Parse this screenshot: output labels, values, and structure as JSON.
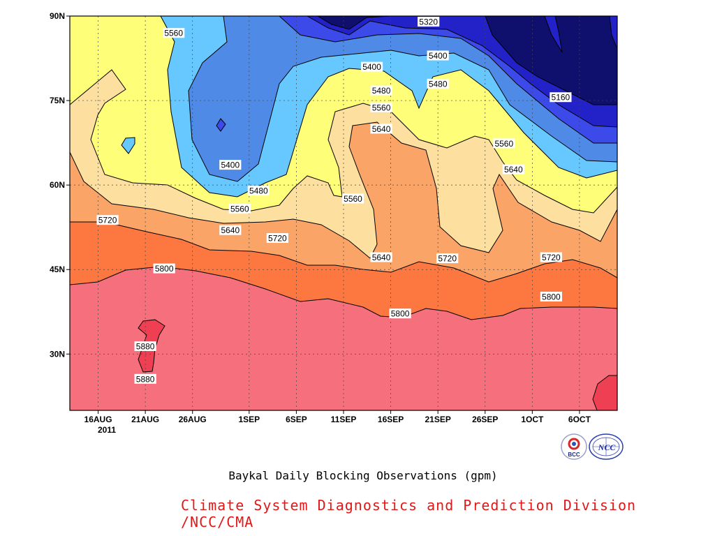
{
  "title": "Baykal Daily Blocking Observations (gpm)",
  "credit": "Climate System Diagnostics and Prediction Division /NCC/CMA",
  "logos": [
    "BCC",
    "NCC"
  ],
  "chart_data": {
    "type": "contour",
    "x_tick_labels": [
      "16AUG",
      "21AUG",
      "26AUG",
      "1SEP",
      "6SEP",
      "11SEP",
      "16SEP",
      "21SEP",
      "26SEP",
      "1OCT",
      "6OCT"
    ],
    "x_year_label": "2011",
    "x_ticks": [
      "2011-08-16",
      "2011-08-21",
      "2011-08-26",
      "2011-09-01",
      "2011-09-06",
      "2011-09-11",
      "2011-09-16",
      "2011-09-21",
      "2011-09-26",
      "2011-10-01",
      "2011-10-06"
    ],
    "xlim": [
      "2011-08-13",
      "2011-10-10"
    ],
    "y_tick_labels": [
      "30N",
      "45N",
      "60N",
      "75N",
      "90N"
    ],
    "y_ticks": [
      30,
      45,
      60,
      75,
      90
    ],
    "ylim": [
      20,
      90
    ],
    "grid": true,
    "contour_levels": [
      5160,
      5240,
      5320,
      5400,
      5480,
      5560,
      5640,
      5720,
      5800,
      5880
    ],
    "fill_colors": {
      "lt5160": "#0f0f6e",
      "5160": "#2222c8",
      "5240": "#3b4ae8",
      "5320": "#4f8be6",
      "5400": "#5ea9ee",
      "5480": "#66c8ff",
      "5560": "#fefe78",
      "5640": "#fddf9f",
      "5720": "#fba468",
      "5800": "#fc7840",
      "5880": "#f66f7d",
      "gt5880": "#ee4052"
    },
    "contour_labels": [
      {
        "text": "5560",
        "date": "2011-08-24",
        "lat": 87
      },
      {
        "text": "5320",
        "date": "2011-09-20",
        "lat": 89
      },
      {
        "text": "5400",
        "date": "2011-09-14",
        "lat": 81
      },
      {
        "text": "5400",
        "date": "2011-09-21",
        "lat": 83
      },
      {
        "text": "5480",
        "date": "2011-09-15",
        "lat": 76.8
      },
      {
        "text": "5480",
        "date": "2011-09-21",
        "lat": 78
      },
      {
        "text": "5560",
        "date": "2011-09-15",
        "lat": 73.8
      },
      {
        "text": "5160",
        "date": "2011-10-04",
        "lat": 75.6
      },
      {
        "text": "5640",
        "date": "2011-09-15",
        "lat": 70
      },
      {
        "text": "5560",
        "date": "2011-09-28",
        "lat": 67.4
      },
      {
        "text": "5400",
        "date": "2011-08-30",
        "lat": 63.6
      },
      {
        "text": "5640",
        "date": "2011-09-29",
        "lat": 62.8
      },
      {
        "text": "5480",
        "date": "2011-09-02",
        "lat": 59
      },
      {
        "text": "5560",
        "date": "2011-09-12",
        "lat": 57.6
      },
      {
        "text": "5560",
        "date": "2011-08-31",
        "lat": 55.8
      },
      {
        "text": "5720",
        "date": "2011-08-17",
        "lat": 53.8
      },
      {
        "text": "5640",
        "date": "2011-08-30",
        "lat": 52
      },
      {
        "text": "5720",
        "date": "2011-09-04",
        "lat": 50.6
      },
      {
        "text": "5640",
        "date": "2011-09-15",
        "lat": 47.2
      },
      {
        "text": "5720",
        "date": "2011-09-22",
        "lat": 47
      },
      {
        "text": "5720",
        "date": "2011-10-03",
        "lat": 47.2
      },
      {
        "text": "5800",
        "date": "2011-08-23",
        "lat": 45.2
      },
      {
        "text": "5800",
        "date": "2011-10-03",
        "lat": 40.2
      },
      {
        "text": "5800",
        "date": "2011-09-17",
        "lat": 37.2
      },
      {
        "text": "5880",
        "date": "2011-08-21",
        "lat": 31.4
      },
      {
        "text": "5880",
        "date": "2011-08-21",
        "lat": 25.6
      }
    ]
  }
}
